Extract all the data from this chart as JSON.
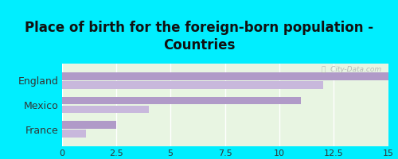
{
  "title": "Place of birth for the foreign-born population -\nCountries",
  "categories": [
    "France",
    "Mexico",
    "England"
  ],
  "bar1_values": [
    2.5,
    11.0,
    15.0
  ],
  "bar2_values": [
    1.1,
    4.0,
    12.0
  ],
  "bar1_color": "#b09ac8",
  "bar2_color": "#c8b8dc",
  "background_fig": "#00eeff",
  "background_chart": "#e8f5e2",
  "xlim": [
    0,
    15
  ],
  "xticks": [
    0,
    2.5,
    5,
    7.5,
    10,
    12.5,
    15
  ],
  "xtick_labels": [
    "0",
    "2.5",
    "5",
    "7.5",
    "10",
    "12.5",
    "15"
  ],
  "watermark": "ⓘ  City-Data.com",
  "bar_height": 0.32,
  "title_fontsize": 12,
  "tick_fontsize": 8,
  "label_fontsize": 9
}
